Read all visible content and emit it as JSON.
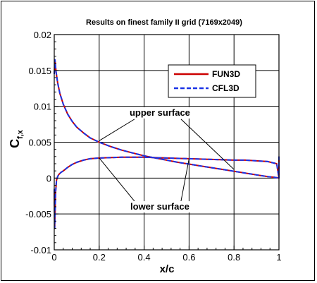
{
  "chart_data": {
    "type": "line",
    "title": "Results on finest family II grid (7169x2049)",
    "xlabel": "x/c",
    "ylabel_main": "C",
    "ylabel_sub": "f,x",
    "xlim": [
      0,
      1
    ],
    "ylim": [
      -0.01,
      0.02
    ],
    "x_ticks": [
      0,
      0.2,
      0.4,
      0.6,
      0.8,
      1
    ],
    "x_tick_labels": [
      "0",
      "0.2",
      "0.4",
      "0.6",
      "0.8",
      "1"
    ],
    "y_ticks": [
      -0.01,
      -0.005,
      0,
      0.005,
      0.01,
      0.015,
      0.02
    ],
    "y_tick_labels": [
      "-0.01",
      "-0.005",
      "0",
      "0.005",
      "0.01",
      "0.015",
      "0.02"
    ],
    "grid": true,
    "legend_position": "top-right",
    "series": [
      {
        "name": "FUN3D",
        "color": "#cc0000",
        "style": "solid",
        "curves": {
          "upper": {
            "x": [
              0.0,
              0.003,
              0.008,
              0.015,
              0.025,
              0.04,
              0.06,
              0.08,
              0.1,
              0.13,
              0.16,
              0.2,
              0.25,
              0.3,
              0.35,
              0.4,
              0.45,
              0.5,
              0.55,
              0.6,
              0.65,
              0.7,
              0.75,
              0.8,
              0.85,
              0.9,
              0.95,
              0.98,
              1.0
            ],
            "y": [
              0.0145,
              0.0165,
              0.0148,
              0.0133,
              0.0118,
              0.0103,
              0.0089,
              0.0079,
              0.0071,
              0.0063,
              0.0056,
              0.005,
              0.0044,
              0.0039,
              0.0035,
              0.0031,
              0.0028,
              0.0025,
              0.0022,
              0.00195,
              0.0017,
              0.00145,
              0.0012,
              0.00095,
              0.0007,
              0.00045,
              0.0002,
              0.0001,
              0.0
            ]
          },
          "lower": {
            "x": [
              0.0,
              0.002,
              0.004,
              0.006,
              0.01,
              0.015,
              0.02,
              0.03,
              0.04,
              0.06,
              0.08,
              0.1,
              0.13,
              0.16,
              0.2,
              0.3,
              0.4,
              0.5,
              0.6,
              0.7,
              0.8,
              0.85,
              0.9,
              0.95,
              0.99,
              1.0,
              1.0
            ],
            "y": [
              -0.0015,
              -0.007,
              -0.0045,
              -0.002,
              -0.0003,
              0.0002,
              0.0005,
              0.0008,
              0.001,
              0.0015,
              0.0019,
              0.0022,
              0.0025,
              0.0027,
              0.0028,
              0.0029,
              0.0029,
              0.0028,
              0.0027,
              0.0026,
              0.0025,
              0.0025,
              0.0024,
              0.0023,
              0.002,
              0.0,
              0.003
            ]
          }
        }
      },
      {
        "name": "CFL3D",
        "color": "#1a33e6",
        "style": "dashed",
        "curves": {
          "upper": {
            "x": [
              0.0,
              0.003,
              0.008,
              0.015,
              0.025,
              0.04,
              0.06,
              0.08,
              0.1,
              0.13,
              0.16,
              0.2,
              0.25,
              0.3,
              0.35,
              0.4,
              0.45,
              0.5,
              0.55,
              0.6,
              0.65,
              0.7,
              0.75,
              0.8,
              0.85,
              0.9,
              0.95,
              0.98,
              1.0
            ],
            "y": [
              0.0145,
              0.0165,
              0.0148,
              0.0133,
              0.0118,
              0.0103,
              0.0089,
              0.0079,
              0.0071,
              0.0063,
              0.0056,
              0.005,
              0.0044,
              0.0039,
              0.0035,
              0.0031,
              0.0028,
              0.0025,
              0.0022,
              0.00195,
              0.0017,
              0.00145,
              0.0012,
              0.00095,
              0.0007,
              0.00045,
              0.0002,
              0.0001,
              0.0
            ]
          },
          "lower": {
            "x": [
              0.0,
              0.002,
              0.004,
              0.006,
              0.01,
              0.015,
              0.02,
              0.03,
              0.04,
              0.06,
              0.08,
              0.1,
              0.13,
              0.16,
              0.2,
              0.3,
              0.4,
              0.5,
              0.6,
              0.7,
              0.8,
              0.85,
              0.9,
              0.95,
              0.99,
              1.0,
              1.0
            ],
            "y": [
              -0.0015,
              -0.007,
              -0.0045,
              -0.002,
              -0.0003,
              0.0002,
              0.0005,
              0.0008,
              0.001,
              0.0015,
              0.0019,
              0.0022,
              0.0025,
              0.0027,
              0.0028,
              0.0029,
              0.0029,
              0.0028,
              0.0027,
              0.0026,
              0.0025,
              0.0025,
              0.0024,
              0.0023,
              0.002,
              0.0,
              0.003
            ]
          }
        }
      }
    ],
    "annotations": [
      {
        "text": "upper surface",
        "label_x": 0.47,
        "label_y": 0.0087,
        "targets": [
          [
            0.2,
            0.0052
          ],
          [
            0.8,
            0.0012
          ]
        ]
      },
      {
        "text": "lower surface",
        "label_x": 0.47,
        "label_y": -0.0044,
        "targets": [
          [
            0.2,
            0.0028
          ],
          [
            0.6,
            0.0027
          ]
        ]
      }
    ]
  }
}
